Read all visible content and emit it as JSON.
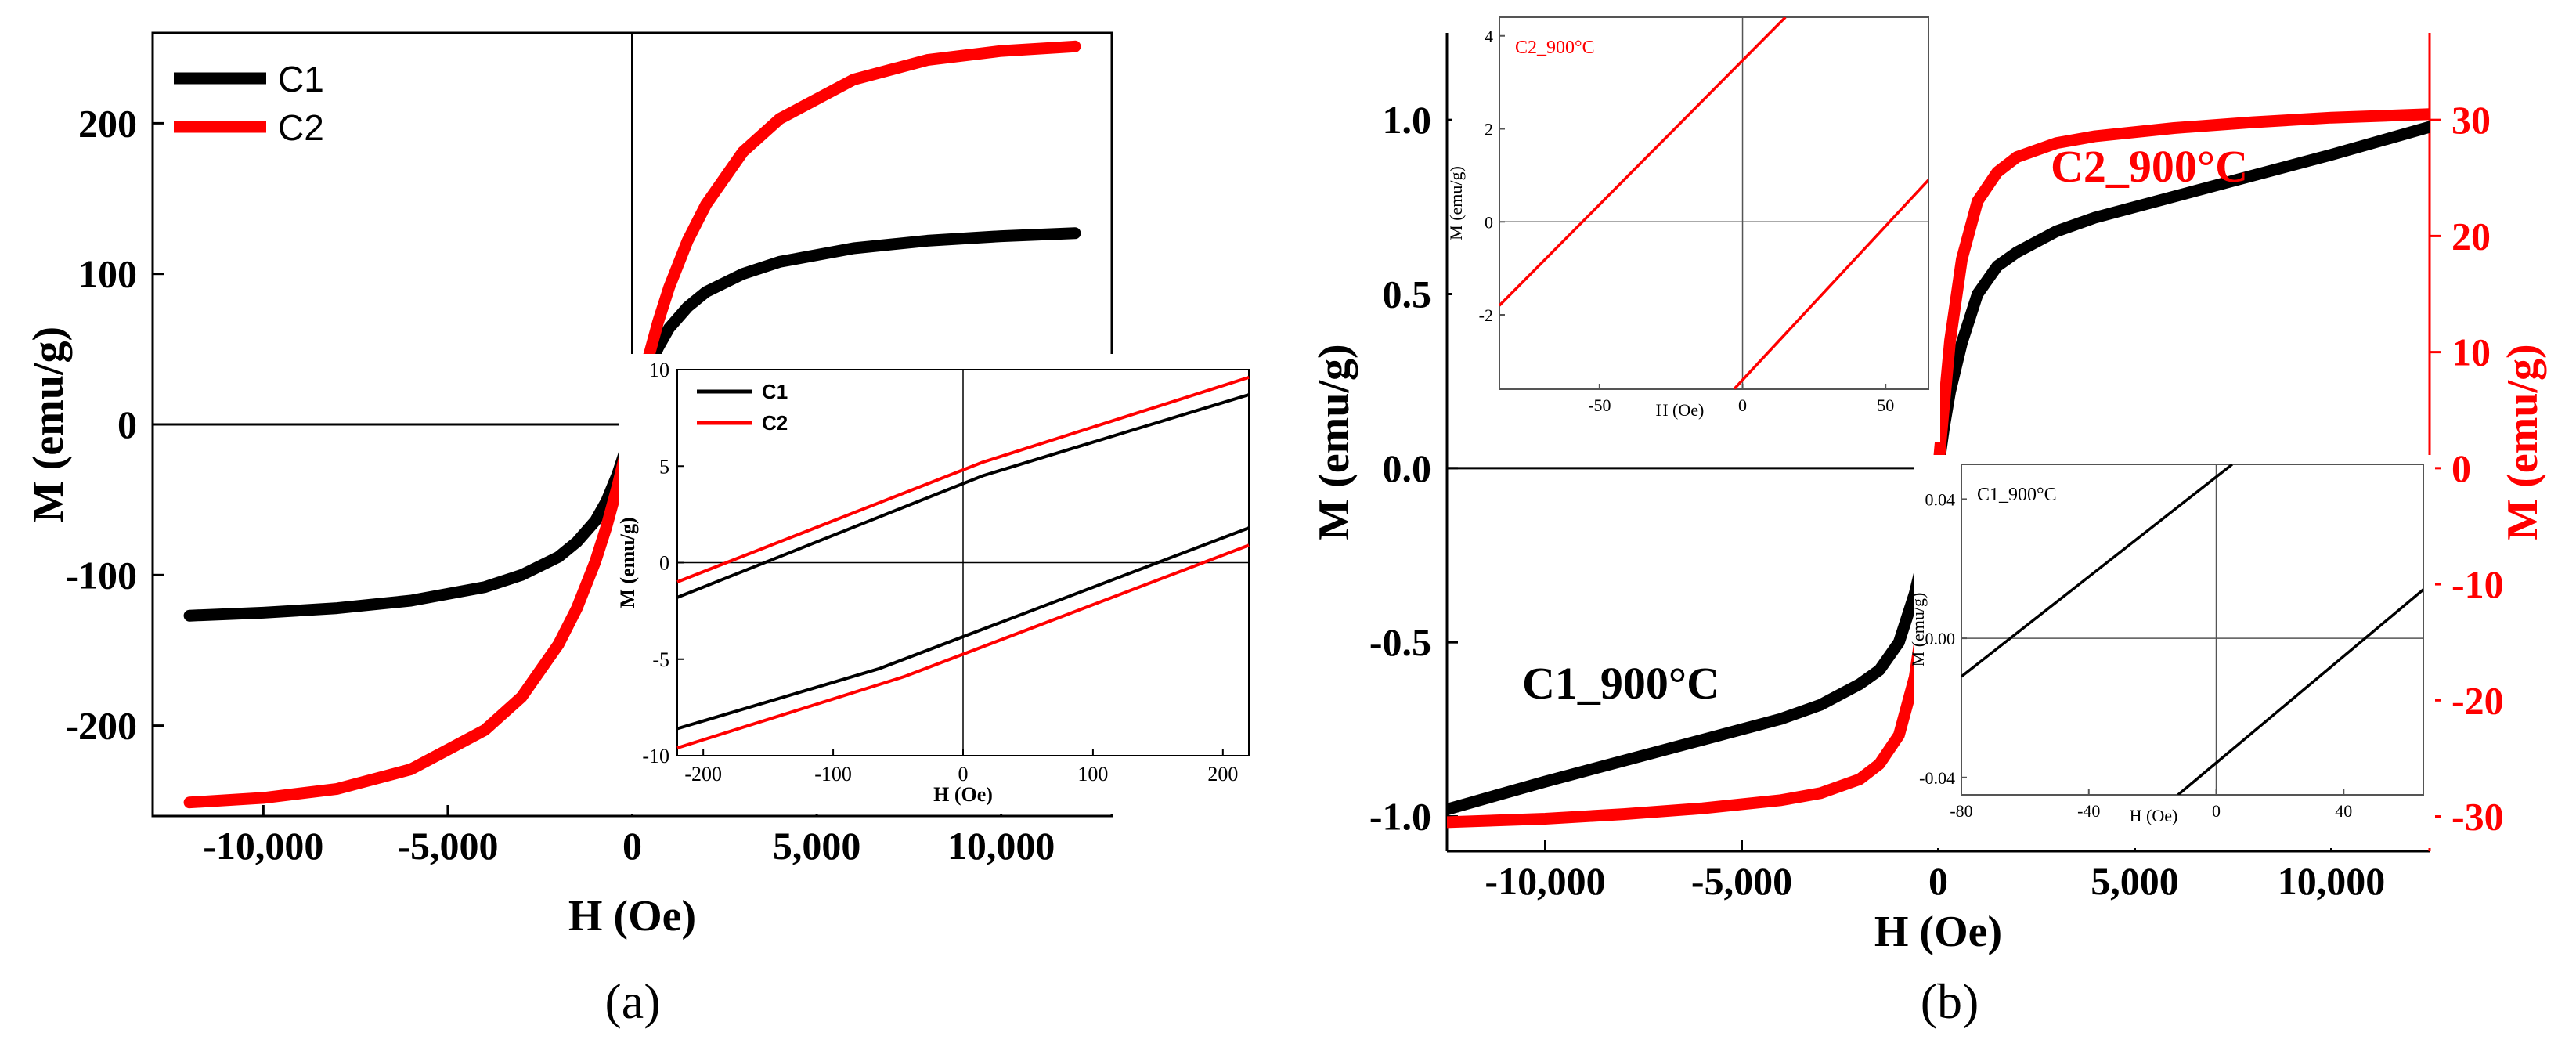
{
  "chart_data": [
    {
      "id": "panel_a",
      "type": "line",
      "panel_label": "(a)",
      "xlabel": "H (Oe)",
      "ylabel": "M (emu/g)",
      "xlim": [
        -13000,
        13000
      ],
      "ylim": [
        -260,
        260
      ],
      "xticks": [
        -10000,
        -5000,
        0,
        5000,
        10000
      ],
      "xtick_labels": [
        "-10,000",
        "-5,000",
        "0",
        "5,000",
        "10,000"
      ],
      "yticks": [
        -200,
        -100,
        0,
        100,
        200
      ],
      "ytick_labels": [
        "-200",
        "-100",
        "0",
        "100",
        "200"
      ],
      "legend_position": "top-left",
      "series": [
        {
          "name": "C1",
          "color": "#000000",
          "x": [
            -12000,
            -10000,
            -8000,
            -6000,
            -4000,
            -3000,
            -2000,
            -1500,
            -1000,
            -700,
            -400,
            -200,
            0,
            200,
            400,
            700,
            1000,
            1500,
            2000,
            3000,
            4000,
            6000,
            8000,
            10000,
            12000
          ],
          "y": [
            -127,
            -125,
            -122,
            -117,
            -108,
            -100,
            -88,
            -78,
            -64,
            -51,
            -33,
            -18,
            0,
            18,
            33,
            51,
            64,
            78,
            88,
            100,
            108,
            117,
            122,
            125,
            127
          ]
        },
        {
          "name": "C2",
          "color": "#ff0000",
          "x": [
            -12000,
            -10000,
            -8000,
            -6000,
            -4000,
            -3000,
            -2000,
            -1500,
            -1000,
            -700,
            -400,
            -200,
            0,
            200,
            400,
            700,
            1000,
            1500,
            2000,
            3000,
            4000,
            6000,
            8000,
            10000,
            12000
          ],
          "y": [
            -251,
            -248,
            -242,
            -229,
            -203,
            -181,
            -146,
            -122,
            -91,
            -68,
            -41,
            -21,
            0,
            21,
            41,
            68,
            91,
            122,
            146,
            181,
            203,
            229,
            242,
            248,
            251
          ]
        }
      ],
      "inset": {
        "xlabel": "H (Oe)",
        "ylabel": "M (emu/g)",
        "xlim": [
          -220,
          220
        ],
        "ylim": [
          -10,
          10
        ],
        "xticks": [
          -200,
          -100,
          0,
          100,
          200
        ],
        "xtick_labels": [
          "-200",
          "-100",
          "0",
          "100",
          "200"
        ],
        "yticks": [
          -10,
          -5,
          0,
          5,
          10
        ],
        "ytick_labels": [
          "-10",
          "-5",
          "0",
          "5",
          "10"
        ],
        "legend_position": "top-left",
        "series": [
          {
            "name": "C1",
            "color": "#000000",
            "branches": [
              {
                "x": [
                  -220,
                  15,
                  220
                ],
                "y": [
                  -1.8,
                  4.5,
                  8.7
                ]
              },
              {
                "x": [
                  -220,
                  -65,
                  220
                ],
                "y": [
                  -8.6,
                  -5.5,
                  1.8
                ]
              }
            ]
          },
          {
            "name": "C2",
            "color": "#ff0000",
            "branches": [
              {
                "x": [
                  -220,
                  15,
                  220
                ],
                "y": [
                  -1.0,
                  5.2,
                  9.6
                ]
              },
              {
                "x": [
                  -220,
                  -45,
                  220
                ],
                "y": [
                  -9.6,
                  -5.9,
                  0.9
                ]
              }
            ]
          }
        ]
      }
    },
    {
      "id": "panel_b",
      "type": "line",
      "panel_label": "(b)",
      "xlabel": "H (Oe)",
      "ylabel_left": "M (emu/g)",
      "ylabel_right": "M (emu/g)",
      "xlim": [
        -12500,
        12500
      ],
      "ylim_left": [
        -1.1,
        1.25
      ],
      "ylim_right": [
        -33,
        37.5
      ],
      "xticks": [
        -10000,
        -5000,
        0,
        5000,
        10000
      ],
      "xtick_labels": [
        "-10,000",
        "-5,000",
        "0",
        "5,000",
        "10,000"
      ],
      "yticks_left": [
        -1.0,
        -0.5,
        0.0,
        0.5,
        1.0
      ],
      "ytick_labels_left": [
        "-1.0",
        "-0.5",
        "0.0",
        "0.5",
        "1.0"
      ],
      "yticks_right": [
        -30,
        -20,
        -10,
        0,
        10,
        20,
        30
      ],
      "ytick_labels_right": [
        "-30",
        "-20",
        "-10",
        "0",
        "10",
        "20",
        "30"
      ],
      "annotations": [
        "C1_900°C",
        "C2_900°C"
      ],
      "series": [
        {
          "name": "C1_900°C",
          "axis": "left",
          "color": "#000000",
          "x": [
            -12500,
            -10000,
            -8000,
            -6000,
            -4000,
            -3000,
            -2000,
            -1500,
            -1000,
            -600,
            -300,
            -150,
            0,
            150,
            300,
            600,
            1000,
            1500,
            2000,
            3000,
            4000,
            6000,
            8000,
            10000,
            12500
          ],
          "y": [
            -0.98,
            -0.9,
            -0.84,
            -0.78,
            -0.72,
            -0.68,
            -0.62,
            -0.58,
            -0.5,
            -0.36,
            -0.22,
            -0.12,
            0,
            0.12,
            0.22,
            0.36,
            0.5,
            0.58,
            0.62,
            0.68,
            0.72,
            0.78,
            0.84,
            0.9,
            0.98
          ]
        },
        {
          "name": "C2_900°C",
          "axis": "right",
          "color": "#ff0000",
          "x": [
            -12500,
            -10000,
            -8000,
            -6000,
            -4000,
            -3000,
            -2000,
            -1500,
            -1000,
            -600,
            -300,
            -150,
            0,
            150,
            300,
            600,
            1000,
            1500,
            2000,
            3000,
            4000,
            6000,
            8000,
            10000,
            12500
          ],
          "y": [
            -30.5,
            -30.2,
            -29.8,
            -29.3,
            -28.6,
            -28.0,
            -26.8,
            -25.5,
            -23.0,
            -18.0,
            -11.0,
            -5.5,
            0,
            5.5,
            11.0,
            18.0,
            23.0,
            25.5,
            26.8,
            28.0,
            28.6,
            29.3,
            29.8,
            30.2,
            30.5
          ]
        }
      ],
      "inset_top": {
        "label": "C2_900°C",
        "xlabel": "H (Oe)",
        "ylabel": "M (emu/g)",
        "xlim": [
          -85,
          65
        ],
        "ylim": [
          -3.6,
          4.4
        ],
        "xticks": [
          -50,
          0,
          50
        ],
        "xtick_labels": [
          "-50",
          "0",
          "50"
        ],
        "yticks": [
          -2,
          0,
          2,
          4
        ],
        "ytick_labels": [
          "-2",
          "0",
          "2",
          "4"
        ],
        "color": "#ff0000",
        "branches": [
          {
            "x": [
              -85,
              15
            ],
            "y": [
              -1.8,
              4.4
            ]
          },
          {
            "x": [
              -3,
              65
            ],
            "y": [
              -3.6,
              0.9
            ]
          }
        ]
      },
      "inset_bottom": {
        "label": "C1_900°C",
        "xlabel": "H (Oe)",
        "ylabel": "M (emu/g)",
        "xlim": [
          -80,
          65
        ],
        "ylim": [
          -0.045,
          0.05
        ],
        "xticks": [
          -80,
          -40,
          0,
          40
        ],
        "xtick_labels": [
          "-80",
          "-40",
          "0",
          "40"
        ],
        "yticks": [
          -0.04,
          0.0,
          0.04
        ],
        "ytick_labels": [
          "-0.04",
          "0.00",
          "0.04"
        ],
        "color": "#000000",
        "branches": [
          {
            "x": [
              -80,
              5
            ],
            "y": [
              -0.011,
              0.05
            ]
          },
          {
            "x": [
              -12,
              65
            ],
            "y": [
              -0.045,
              0.014
            ]
          }
        ]
      }
    }
  ]
}
